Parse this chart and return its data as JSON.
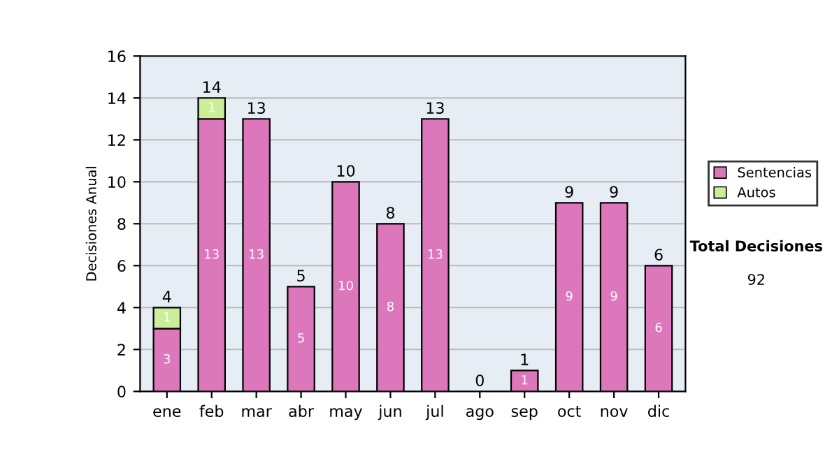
{
  "chart_data": {
    "type": "bar",
    "stacked": true,
    "ylabel": "Decisiones Anual",
    "categories": [
      "ene",
      "feb",
      "mar",
      "abr",
      "may",
      "jun",
      "jul",
      "ago",
      "sep",
      "oct",
      "nov",
      "dic"
    ],
    "series": [
      {
        "name": "Sentencias",
        "color": "#dd77bb",
        "values": [
          3,
          13,
          13,
          5,
          10,
          8,
          13,
          0,
          1,
          9,
          9,
          6
        ],
        "value_labels": [
          "3",
          "13",
          "13",
          "5",
          "10",
          "8",
          "13",
          null,
          "1",
          "9",
          "9",
          "6"
        ]
      },
      {
        "name": "Autos",
        "color": "#ccee99",
        "values": [
          1,
          1,
          0,
          0,
          0,
          0,
          0,
          0,
          0,
          0,
          0,
          0
        ],
        "value_labels": [
          "1",
          "1",
          null,
          null,
          null,
          null,
          null,
          null,
          null,
          null,
          null,
          null
        ]
      }
    ],
    "totals": [
      "4",
      "14",
      "13",
      "5",
      "10",
      "8",
      "13",
      "0",
      "1",
      "9",
      "9",
      "6"
    ],
    "ylim": [
      0,
      16
    ],
    "yticks": [
      0,
      2,
      4,
      6,
      8,
      10,
      12,
      14,
      16
    ],
    "grid": "y",
    "legend": "right",
    "annotations": [
      "Total Decisiones",
      "92"
    ]
  }
}
